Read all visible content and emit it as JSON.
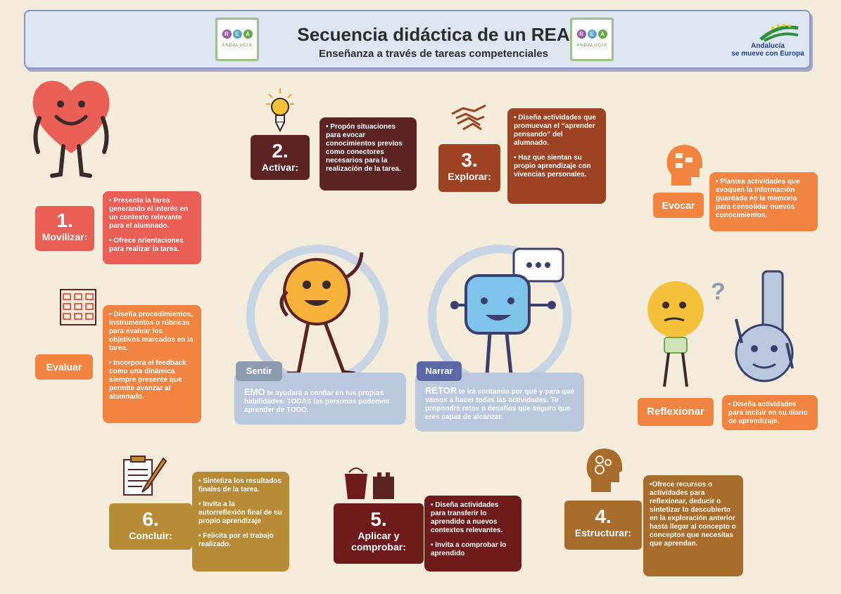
{
  "header": {
    "title": "Secuencia didáctica de un REA",
    "subtitle": "Enseñanza a través de tareas competenciales",
    "logo_letters": [
      "R",
      "E",
      "A"
    ],
    "logo_sub": "ANDALUCÍA",
    "partner_line1": "Andalucía",
    "partner_line2": "se mueve con Europa"
  },
  "steps": {
    "movilizar": {
      "num": "1.",
      "label": "Movilizar:",
      "items": [
        "• Presenta la tarea generando el interés en un contexto relevante para el alumnado.",
        "• Ofrece orientaciones para realizar la tarea."
      ]
    },
    "activar": {
      "num": "2.",
      "label": "Activar:",
      "items": [
        "• Propón situaciones para evocar conocimientos previos como conectores necesarios para la realización de la tarea."
      ]
    },
    "explorar": {
      "num": "3.",
      "label": "Explorar:",
      "items": [
        "• Diseña actividades que promuevan el “aprender pensando” del alumnado.",
        "• Haz que sientan su propio aprendizaje con vivencias personales."
      ]
    },
    "evocar": {
      "label": "Evocar",
      "items": [
        "• Plantea actividades que evoquen la información guardada en la memoria para consolidar nuevos conocimientos."
      ]
    },
    "evaluar": {
      "label": "Evaluar",
      "items": [
        "• Diseña procedimientos, instrumentos o rúbricas para evaluar los objetivos marcados en la tarea.",
        "• Incorpora el feedback como una dinámica siempre presente que permite avanzar al alumnado."
      ]
    },
    "reflexionar": {
      "label": "Reflexionar",
      "items": [
        "• Diseña actividades para incluir en su diario de aprendizaje."
      ]
    },
    "concluir": {
      "num": "6.",
      "label": "Concluir:",
      "items": [
        "• Sintetiza los resultados finales de la tarea.",
        "• Invita a la autorreflexión final de su propio aprendizaje",
        "• Felicita por el trabajo realizado."
      ]
    },
    "aplicar": {
      "num": "5.",
      "label1": "Aplicar y",
      "label2": "comprobar:",
      "items": [
        "• Diseña actividades para transferir lo aprendido a nuevos contextos relevantes.",
        "• Invita a comprobar lo aprendido"
      ]
    },
    "estructurar": {
      "num": "4.",
      "label": "Estructurar:",
      "items": [
        "•Ofrece recursos o actividades para reflexionar, deducir o sintetizar lo descubierto en la exploración anterior hasta llegar al concepto o conceptos que necesitas que aprendan."
      ]
    }
  },
  "characters": {
    "sentir": {
      "tag": "Sentir",
      "name": "EMO",
      "text": "te ayudará a confiar en tus propias habilidades. TODAS las personas podemos aprender de TODO."
    },
    "narrar": {
      "tag": "Narrar",
      "name": "RETOR",
      "text": "te irá contando por qué y para qué vamos a hacer todas las actividades. Te propondrá retos o desafíos que seguro que eres capaz de alcanzar."
    }
  },
  "colors": {
    "red": "#e95e55",
    "orange": "#f28442",
    "darkbrown": "#5c2323",
    "brown": "#9d4222",
    "gold": "#b88c36",
    "maroon": "#6f1b1b",
    "tan": "#a86c2d",
    "blue": "#b9c8dc",
    "tag_sentir": "#8c9bb0",
    "tag_narrar": "#5b69a6"
  },
  "icons": [
    "heart-character-icon",
    "lightbulb-icon",
    "handshake-icon",
    "head-profile-icon",
    "checklist-icon",
    "lightbulb-character-icon",
    "key-character-icon",
    "clipboard-pencil-icon",
    "bucket-castle-icon",
    "head-gears-icon",
    "emo-character-icon",
    "retor-robot-icon"
  ]
}
